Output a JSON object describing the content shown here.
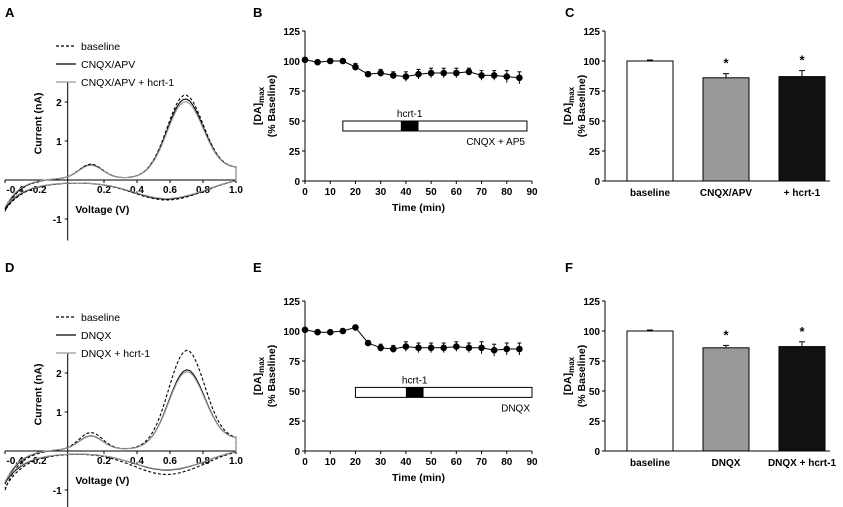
{
  "chart_data": [
    {
      "panel": "A",
      "type": "line",
      "xlabel": "Voltage (V)",
      "ylabel": "Current (nA)",
      "xlim": [
        -0.4,
        1.0
      ],
      "ylim": [
        -1.5,
        2.5
      ],
      "xticks": [
        "-0.4",
        "-0.2",
        "0.2",
        "0.4",
        "0.6",
        "0.8",
        "1.0"
      ],
      "yticks": [
        "-1",
        "1",
        "2"
      ],
      "series": [
        {
          "name": "baseline",
          "style": "dashed",
          "color": "#000000",
          "peak_v": 0.69,
          "peak_na": 2.05,
          "min_na": -0.85
        },
        {
          "name": "CNQX/APV",
          "style": "solid",
          "color": "#000000",
          "peak_v": 0.69,
          "peak_na": 1.95,
          "min_na": -0.8
        },
        {
          "name": "CNQX/APV + hcrt-1",
          "style": "solid",
          "color": "#999999",
          "peak_v": 0.69,
          "peak_na": 1.88,
          "min_na": -0.75
        }
      ]
    },
    {
      "panel": "B",
      "type": "line",
      "xlabel": "Time  (min)",
      "ylabel_main": "[DA]",
      "ylabel_sub": "max",
      "ylabel2": "(% Baseline)",
      "xlim": [
        0,
        90
      ],
      "ylim": [
        0,
        125
      ],
      "xticks": [
        "0",
        "10",
        "20",
        "30",
        "40",
        "50",
        "60",
        "70",
        "80",
        "90"
      ],
      "yticks": [
        "0",
        "25",
        "50",
        "75",
        "100",
        "125"
      ],
      "x": [
        0,
        5,
        10,
        15,
        20,
        25,
        30,
        35,
        40,
        45,
        50,
        55,
        60,
        65,
        70,
        75,
        80,
        85
      ],
      "y": [
        101,
        99,
        100,
        100,
        95,
        89,
        90,
        88,
        87,
        89,
        90,
        90,
        90,
        91,
        88,
        88,
        87,
        86
      ],
      "err": [
        1,
        1,
        1,
        1,
        3,
        2,
        3,
        3,
        4,
        4,
        4,
        4,
        4,
        3,
        4,
        4,
        5,
        5
      ],
      "bar": {
        "from": 15,
        "to": 88,
        "label": "CNQX + AP5"
      },
      "pulse": {
        "from": 38,
        "to": 45,
        "label": "hcrt-1"
      }
    },
    {
      "panel": "C",
      "type": "bar",
      "ylabel_main": "[DA]",
      "ylabel_sub": "max",
      "ylabel2": "(% Baseline)",
      "ylim": [
        0,
        125
      ],
      "yticks": [
        "0",
        "25",
        "50",
        "75",
        "100",
        "125"
      ],
      "categories": [
        "baseline",
        "CNQX/APV",
        "+ hcrt-1"
      ],
      "values": [
        100,
        86,
        87
      ],
      "errors": [
        0.8,
        3.5,
        5
      ],
      "colors": [
        "#ffffff",
        "#999999",
        "#111111"
      ],
      "significance": [
        "",
        "*",
        "*"
      ]
    },
    {
      "panel": "D",
      "type": "line",
      "xlabel": "Voltage (V)",
      "ylabel": "Current (nA)",
      "xlim": [
        -0.4,
        1.0
      ],
      "ylim": [
        -1.5,
        2.5
      ],
      "xticks": [
        "-0.4",
        "-0.2",
        "0.2",
        "0.4",
        "0.6",
        "0.8",
        "1.0"
      ],
      "yticks": [
        "-1",
        "1",
        "2"
      ],
      "series": [
        {
          "name": "baseline",
          "style": "dashed",
          "color": "#000000",
          "peak_v": 0.7,
          "peak_na": 2.45,
          "min_na": -1.05
        },
        {
          "name": "DNQX",
          "style": "solid",
          "color": "#000000",
          "peak_v": 0.7,
          "peak_na": 1.95,
          "min_na": -0.9
        },
        {
          "name": "DNQX + hcrt-1",
          "style": "solid",
          "color": "#999999",
          "peak_v": 0.7,
          "peak_na": 1.9,
          "min_na": -0.85
        }
      ]
    },
    {
      "panel": "E",
      "type": "line",
      "xlabel": "Time (min)",
      "ylabel_main": "[DA]",
      "ylabel_sub": "max",
      "ylabel2": "(% Baseline)",
      "xlim": [
        0,
        90
      ],
      "ylim": [
        0,
        125
      ],
      "xticks": [
        "0",
        "10",
        "20",
        "30",
        "40",
        "50",
        "60",
        "70",
        "80",
        "90"
      ],
      "yticks": [
        "0",
        "25",
        "50",
        "75",
        "100",
        "125"
      ],
      "x": [
        0,
        5,
        10,
        15,
        20,
        25,
        30,
        35,
        40,
        45,
        50,
        55,
        60,
        65,
        70,
        75,
        80,
        85
      ],
      "y": [
        101,
        99,
        99,
        100,
        103,
        90,
        86,
        85,
        87,
        86,
        86,
        86,
        87,
        86,
        86,
        84,
        85,
        85
      ],
      "err": [
        1,
        1,
        1,
        1,
        1,
        2,
        3,
        3,
        4,
        4,
        4,
        4,
        4,
        4,
        5,
        5,
        5,
        5
      ],
      "bar": {
        "from": 20,
        "to": 90,
        "label": "DNQX"
      },
      "pulse": {
        "from": 40,
        "to": 47,
        "label": "hcrt-1"
      }
    },
    {
      "panel": "F",
      "type": "bar",
      "ylabel_main": "[DA]",
      "ylabel_sub": "max",
      "ylabel2": "(% Baseline)",
      "ylim": [
        0,
        125
      ],
      "yticks": [
        "0",
        "25",
        "50",
        "75",
        "100",
        "125"
      ],
      "categories": [
        "baseline",
        "DNQX",
        "DNQX + hcrt-1"
      ],
      "values": [
        100,
        86,
        87
      ],
      "errors": [
        0.8,
        2,
        4
      ],
      "colors": [
        "#ffffff",
        "#999999",
        "#111111"
      ],
      "significance": [
        "",
        "*",
        "*"
      ]
    }
  ]
}
